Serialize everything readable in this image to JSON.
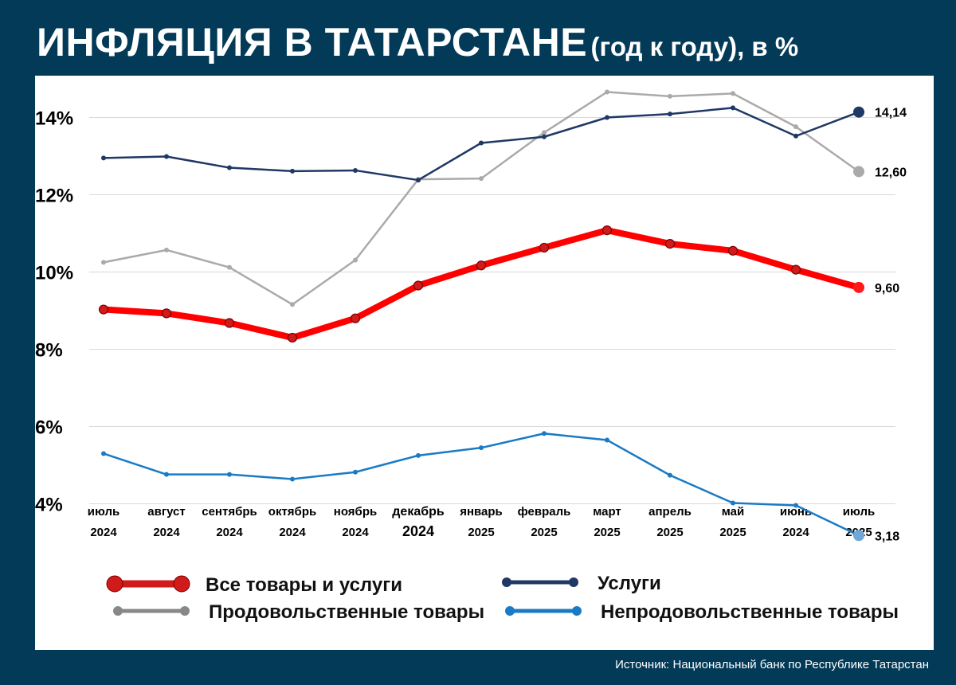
{
  "title": {
    "main": "ИНФЛЯЦИЯ В ТАТАРСТАНЕ",
    "sub": "(год к году), в %"
  },
  "source": "Источник: Национальный банк по Республике Татарстан",
  "chart_data": {
    "type": "line",
    "ylim": [
      3,
      15
    ],
    "yticks": [
      4,
      6,
      8,
      10,
      12,
      14
    ],
    "ytick_labels": [
      "4%",
      "6%",
      "8%",
      "10%",
      "12%",
      "14%"
    ],
    "categories": [
      [
        "июль",
        "2024"
      ],
      [
        "август",
        "2024"
      ],
      [
        "сентябрь",
        "2024"
      ],
      [
        "октябрь",
        "2024"
      ],
      [
        "ноябрь",
        "2024"
      ],
      [
        "декабрь",
        "2024"
      ],
      [
        "январь",
        "2025"
      ],
      [
        "февраль",
        "2025"
      ],
      [
        "март",
        "2025"
      ],
      [
        "апрель",
        "2025"
      ],
      [
        "май",
        "2025"
      ],
      [
        "июнь",
        "2024"
      ],
      [
        "июль",
        "2025"
      ]
    ],
    "series": [
      {
        "key": "all",
        "name": "Все товары и услуги",
        "color": "#ff0000",
        "marker": "#d11a1a",
        "values": [
          9.03,
          8.93,
          8.68,
          8.3,
          8.8,
          9.65,
          10.17,
          10.63,
          11.08,
          10.73,
          10.55,
          10.06,
          9.6
        ],
        "last_label": "9,60"
      },
      {
        "key": "services",
        "name": "Услуги",
        "color": "#1f3864",
        "marker": "#1f3864",
        "values": [
          12.95,
          12.99,
          12.7,
          12.61,
          12.63,
          12.38,
          13.34,
          13.5,
          14.0,
          14.09,
          14.25,
          13.52,
          14.14
        ],
        "last_label": "14,14"
      },
      {
        "key": "food",
        "name": "Продовольственные товары",
        "color": "#aaaaaa",
        "marker": "#aaaaaa",
        "values": [
          10.25,
          10.57,
          10.12,
          9.16,
          10.31,
          12.4,
          12.42,
          13.61,
          14.66,
          14.55,
          14.62,
          13.76,
          12.6
        ],
        "last_label": "12,60"
      },
      {
        "key": "nonfood",
        "name": "Непродовольственные товары",
        "color": "#1a7bc4",
        "marker": "#1a7bc4",
        "values": [
          5.3,
          4.76,
          4.76,
          4.64,
          4.82,
          5.25,
          5.45,
          5.82,
          5.65,
          4.74,
          4.02,
          3.96,
          3.18
        ],
        "last_label": "3,18"
      }
    ],
    "legend": [
      {
        "series": "all",
        "label": "Все товары и услуги"
      },
      {
        "series": "services",
        "label": "Услуги"
      },
      {
        "series": "food",
        "label": "Продовольственные товары"
      },
      {
        "series": "nonfood",
        "label": "Непродовольственные товары"
      }
    ]
  }
}
